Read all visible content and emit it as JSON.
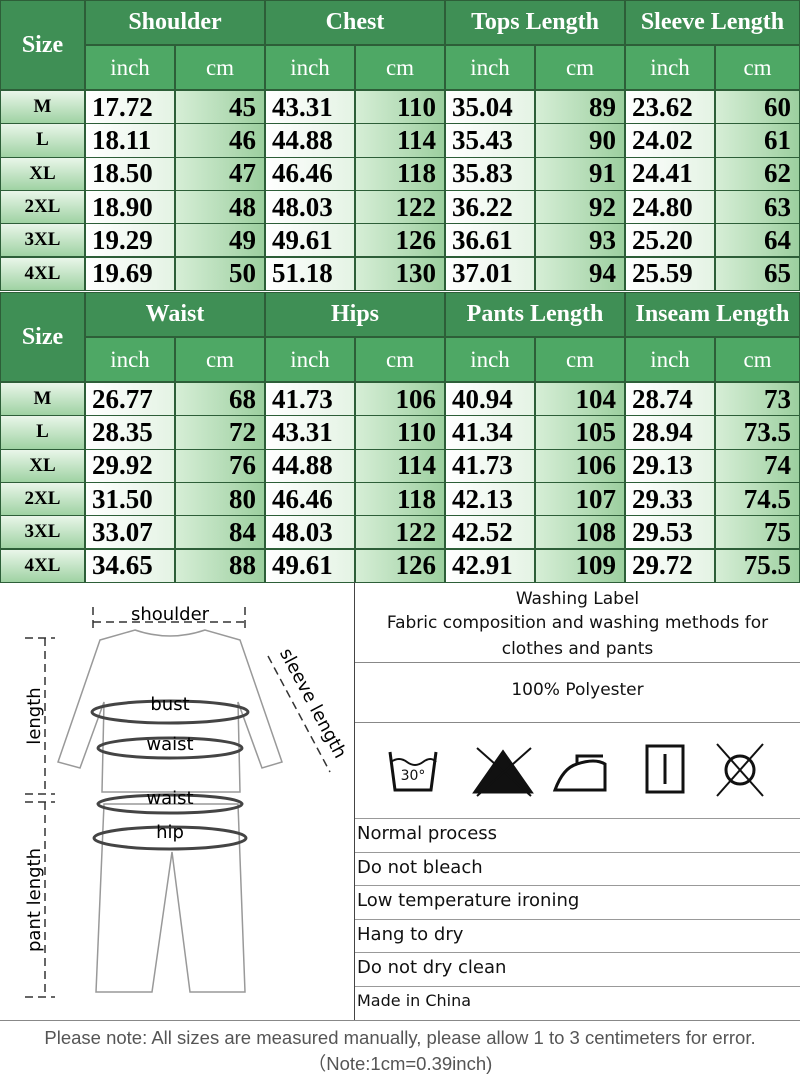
{
  "tables": [
    {
      "size_header": "Size",
      "groups": [
        "Shoulder",
        "Chest",
        "Tops Length",
        "Sleeve Length"
      ],
      "units": [
        "inch",
        "cm",
        "inch",
        "cm",
        "inch",
        "cm",
        "inch",
        "cm"
      ],
      "rows": [
        [
          "M",
          "17.72",
          "45",
          "43.31",
          "110",
          "35.04",
          "89",
          "23.62",
          "60"
        ],
        [
          "L",
          "18.11",
          "46",
          "44.88",
          "114",
          "35.43",
          "90",
          "24.02",
          "61"
        ],
        [
          "XL",
          "18.50",
          "47",
          "46.46",
          "118",
          "35.83",
          "91",
          "24.41",
          "62"
        ],
        [
          "2XL",
          "18.90",
          "48",
          "48.03",
          "122",
          "36.22",
          "92",
          "24.80",
          "63"
        ],
        [
          "3XL",
          "19.29",
          "49",
          "49.61",
          "126",
          "36.61",
          "93",
          "25.20",
          "64"
        ],
        [
          "4XL",
          "19.69",
          "50",
          "51.18",
          "130",
          "37.01",
          "94",
          "25.59",
          "65"
        ]
      ]
    },
    {
      "size_header": "Size",
      "groups": [
        "Waist",
        "Hips",
        "Pants Length",
        "Inseam Length"
      ],
      "units": [
        "inch",
        "cm",
        "inch",
        "cm",
        "inch",
        "cm",
        "inch",
        "cm"
      ],
      "rows": [
        [
          "M",
          "26.77",
          "68",
          "41.73",
          "106",
          "40.94",
          "104",
          "28.74",
          "73"
        ],
        [
          "L",
          "28.35",
          "72",
          "43.31",
          "110",
          "41.34",
          "105",
          "28.94",
          "73.5"
        ],
        [
          "XL",
          "29.92",
          "76",
          "44.88",
          "114",
          "41.73",
          "106",
          "29.13",
          "74"
        ],
        [
          "2XL",
          "31.50",
          "80",
          "46.46",
          "118",
          "42.13",
          "107",
          "29.33",
          "74.5"
        ],
        [
          "3XL",
          "33.07",
          "84",
          "48.03",
          "122",
          "42.52",
          "108",
          "29.53",
          "75"
        ],
        [
          "4XL",
          "34.65",
          "88",
          "49.61",
          "126",
          "42.91",
          "109",
          "29.72",
          "75.5"
        ]
      ]
    }
  ],
  "diagram": {
    "shoulder": "shoulder",
    "sleeve_length": "sleeve length",
    "bust": "bust",
    "waist_top": "waist",
    "waist_pants": "waist",
    "hip": "hip",
    "length": "length",
    "pant_length": "pant length"
  },
  "washing_label": {
    "title": "Washing Label",
    "subtitle": "Fabric composition and washing methods for clothes and pants",
    "composition": "100% Polyester",
    "care": [
      "Normal process",
      "Do not bleach",
      "Low temperature ironing",
      "Hang to dry",
      "Do not dry clean",
      "Made in China"
    ]
  },
  "note": "Please note: All sizes are measured manually, please allow 1 to 3 centimeters for error.（Note:1cm=0.39inch)"
}
